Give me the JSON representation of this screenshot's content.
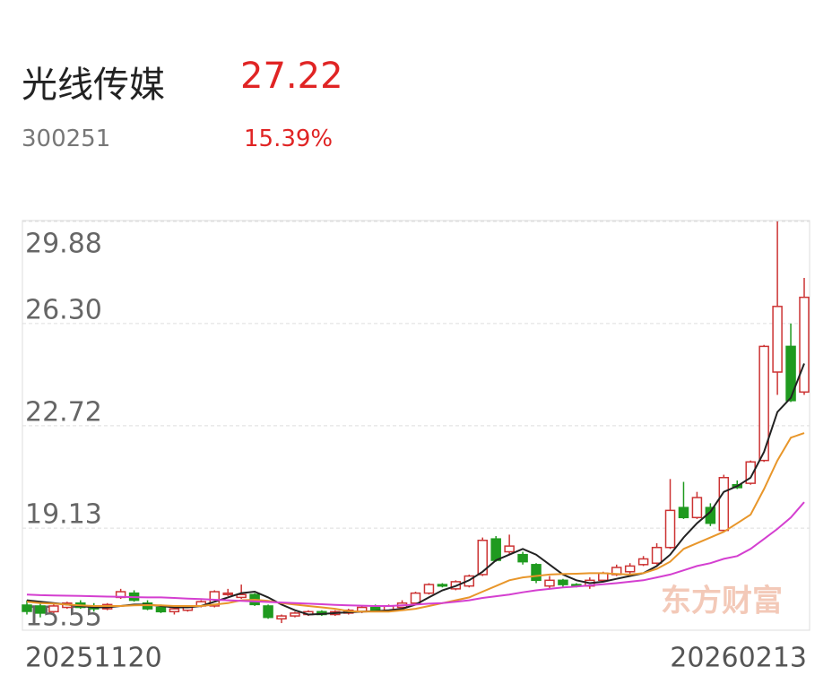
{
  "header": {
    "name": "光线传媒",
    "price": "27.22",
    "code": "300251",
    "change": "15.39%"
  },
  "chart_data": {
    "type": "candlestick",
    "watermark": "东方财富",
    "categories": [
      "20251120",
      null,
      null,
      null,
      null,
      null,
      null,
      null,
      null,
      null,
      null,
      null,
      null,
      null,
      null,
      null,
      null,
      null,
      null,
      null,
      null,
      null,
      null,
      null,
      null,
      null,
      null,
      null,
      null,
      null,
      null,
      null,
      null,
      null,
      null,
      null,
      null,
      null,
      null,
      null,
      null,
      null,
      null,
      null,
      null,
      null,
      null,
      null,
      null,
      null,
      null,
      null,
      null,
      null,
      null,
      null,
      null,
      null,
      "20260213"
    ],
    "ohlc": [
      [
        16.43,
        16.6,
        16.1,
        16.21
      ],
      [
        16.4,
        16.5,
        16.0,
        16.15
      ],
      [
        16.2,
        16.5,
        16.15,
        16.4
      ],
      [
        16.35,
        16.55,
        16.3,
        16.5
      ],
      [
        16.5,
        16.6,
        16.3,
        16.35
      ],
      [
        16.4,
        16.5,
        16.2,
        16.3
      ],
      [
        16.3,
        16.5,
        16.25,
        16.45
      ],
      [
        16.7,
        17.0,
        16.65,
        16.9
      ],
      [
        16.85,
        16.95,
        16.55,
        16.6
      ],
      [
        16.5,
        16.6,
        16.25,
        16.3
      ],
      [
        16.35,
        16.45,
        16.15,
        16.2
      ],
      [
        16.2,
        16.35,
        16.1,
        16.3
      ],
      [
        16.25,
        16.4,
        16.2,
        16.35
      ],
      [
        16.4,
        16.6,
        16.35,
        16.55
      ],
      [
        16.4,
        16.95,
        16.35,
        16.9
      ],
      [
        16.8,
        17.0,
        16.75,
        16.85
      ],
      [
        16.7,
        17.15,
        16.65,
        16.8
      ],
      [
        16.8,
        16.85,
        16.4,
        16.45
      ],
      [
        16.4,
        16.45,
        15.95,
        16.0
      ],
      [
        15.95,
        16.1,
        15.8,
        16.05
      ],
      [
        16.05,
        16.2,
        16.0,
        16.15
      ],
      [
        16.1,
        16.25,
        16.05,
        16.2
      ],
      [
        16.2,
        16.25,
        16.05,
        16.1
      ],
      [
        16.1,
        16.25,
        16.05,
        16.2
      ],
      [
        16.15,
        16.3,
        16.1,
        16.25
      ],
      [
        16.2,
        16.4,
        16.15,
        16.35
      ],
      [
        16.35,
        16.45,
        16.2,
        16.25
      ],
      [
        16.25,
        16.45,
        16.2,
        16.4
      ],
      [
        16.35,
        16.6,
        16.3,
        16.5
      ],
      [
        16.5,
        16.9,
        16.45,
        16.85
      ],
      [
        16.85,
        17.2,
        16.8,
        17.15
      ],
      [
        17.15,
        17.2,
        17.05,
        17.1
      ],
      [
        17.0,
        17.3,
        16.95,
        17.25
      ],
      [
        17.1,
        17.5,
        17.05,
        17.45
      ],
      [
        17.5,
        18.8,
        17.45,
        18.7
      ],
      [
        18.75,
        18.85,
        17.95,
        18.0
      ],
      [
        18.3,
        18.9,
        18.2,
        18.5
      ],
      [
        18.2,
        18.3,
        17.85,
        17.95
      ],
      [
        17.85,
        17.9,
        17.2,
        17.3
      ],
      [
        17.1,
        17.45,
        17.0,
        17.3
      ],
      [
        17.3,
        17.35,
        17.05,
        17.15
      ],
      [
        17.15,
        17.2,
        17.05,
        17.1
      ],
      [
        17.1,
        17.4,
        17.0,
        17.3
      ],
      [
        17.3,
        17.6,
        17.25,
        17.55
      ],
      [
        17.5,
        17.85,
        17.45,
        17.75
      ],
      [
        17.6,
        17.9,
        17.5,
        17.8
      ],
      [
        17.85,
        18.15,
        17.8,
        18.05
      ],
      [
        17.9,
        18.6,
        17.85,
        18.45
      ],
      [
        18.45,
        20.85,
        18.4,
        19.75
      ],
      [
        19.85,
        20.75,
        19.45,
        19.5
      ],
      [
        19.5,
        20.4,
        19.45,
        20.2
      ],
      [
        19.85,
        20.0,
        19.2,
        19.3
      ],
      [
        19.05,
        21.0,
        19.0,
        20.9
      ],
      [
        20.65,
        20.8,
        20.5,
        20.55
      ],
      [
        20.7,
        21.5,
        20.65,
        21.45
      ],
      [
        21.5,
        25.55,
        21.45,
        25.5
      ],
      [
        24.6,
        29.88,
        23.8,
        26.9
      ],
      [
        25.5,
        26.3,
        23.55,
        23.6
      ],
      [
        23.9,
        27.9,
        23.8,
        27.22
      ]
    ],
    "up_color": "#cc3333",
    "down_color": "#1f9a1f",
    "lines": [
      {
        "color": "#222222",
        "values": [
          16.6,
          16.55,
          16.5,
          16.45,
          16.4,
          16.35,
          16.35,
          16.4,
          16.45,
          16.45,
          16.4,
          16.35,
          16.35,
          16.4,
          16.55,
          16.7,
          16.85,
          16.9,
          16.7,
          16.45,
          16.25,
          16.1,
          16.12,
          16.15,
          16.18,
          16.2,
          16.22,
          16.25,
          16.3,
          16.45,
          16.7,
          16.95,
          17.1,
          17.3,
          17.6,
          18.0,
          18.2,
          18.4,
          18.2,
          17.85,
          17.5,
          17.3,
          17.2,
          17.25,
          17.35,
          17.45,
          17.55,
          17.8,
          18.2,
          18.8,
          19.3,
          19.7,
          20.4,
          20.6,
          20.9,
          21.8,
          23.2,
          23.7,
          24.9
        ]
      },
      {
        "color": "#e8962a",
        "values": [
          16.55,
          16.5,
          16.48,
          16.45,
          16.42,
          16.4,
          16.4,
          16.4,
          16.42,
          16.43,
          16.42,
          16.4,
          16.4,
          16.4,
          16.45,
          16.5,
          16.6,
          16.62,
          16.58,
          16.5,
          16.45,
          16.4,
          16.35,
          16.3,
          16.22,
          16.2,
          16.2,
          16.2,
          16.25,
          16.3,
          16.4,
          16.5,
          16.6,
          16.7,
          16.9,
          17.1,
          17.3,
          17.4,
          17.45,
          17.5,
          17.52,
          17.53,
          17.55,
          17.55,
          17.52,
          17.5,
          17.55,
          17.7,
          17.95,
          18.4,
          18.6,
          18.8,
          19.0,
          19.3,
          19.6,
          20.5,
          21.5,
          22.3,
          22.46
        ]
      },
      {
        "color": "#d43fd0",
        "values": [
          16.8,
          16.78,
          16.77,
          16.76,
          16.75,
          16.74,
          16.73,
          16.72,
          16.71,
          16.7,
          16.7,
          16.68,
          16.66,
          16.64,
          16.62,
          16.6,
          16.58,
          16.56,
          16.54,
          16.52,
          16.5,
          16.48,
          16.46,
          16.44,
          16.42,
          16.41,
          16.4,
          16.4,
          16.42,
          16.45,
          16.48,
          16.5,
          16.55,
          16.6,
          16.68,
          16.74,
          16.8,
          16.88,
          16.95,
          17.0,
          17.05,
          17.08,
          17.12,
          17.16,
          17.2,
          17.25,
          17.3,
          17.4,
          17.5,
          17.65,
          17.8,
          17.9,
          18.05,
          18.15,
          18.4,
          18.75,
          19.1,
          19.5,
          20.04
        ]
      }
    ],
    "ylim": [
      15.55,
      29.88
    ],
    "yticks": [
      {
        "value": 29.88,
        "label": "29.88"
      },
      {
        "value": 26.3,
        "label": "26.30"
      },
      {
        "value": 22.72,
        "label": "22.72"
      },
      {
        "value": 19.13,
        "label": "19.13"
      },
      {
        "value": 15.55,
        "label": "15.55"
      }
    ],
    "grid": true
  }
}
